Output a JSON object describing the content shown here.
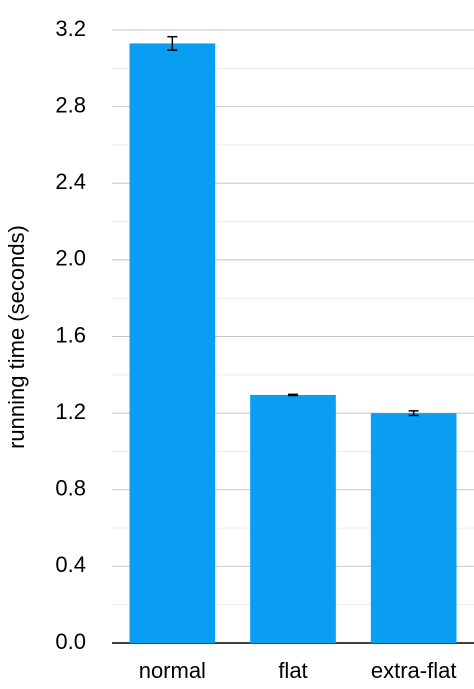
{
  "chart_data": {
    "type": "bar",
    "y_label": "running time (seconds)",
    "categories": [
      "normal",
      "flat",
      "extra-flat"
    ],
    "values": [
      3.13,
      1.295,
      1.2
    ],
    "errors": [
      0.035,
      0.003,
      0.012
    ],
    "color": "#0a9ef2",
    "ylim": [
      0,
      3.2
    ],
    "yticks": [
      {
        "value": 0,
        "label": "0.0"
      },
      0.4,
      0.8,
      1.2,
      1.6,
      {
        "value": 2,
        "label": "2.0"
      },
      2.4,
      2.8,
      3.2
    ],
    "minor_yticks": [
      0.2,
      0.6,
      1,
      1.4,
      1.8,
      2.2,
      2.6,
      3
    ],
    "grid": true
  }
}
